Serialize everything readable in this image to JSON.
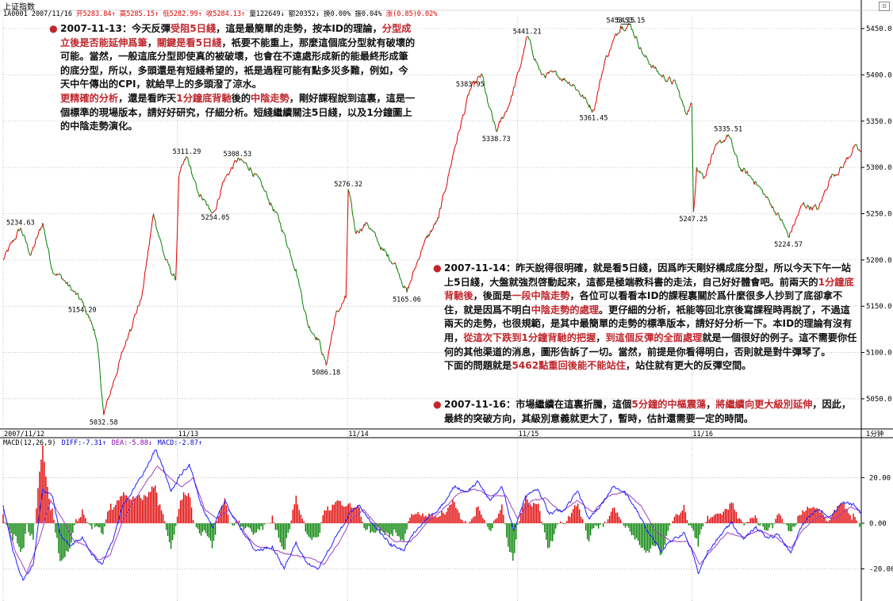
{
  "header": {
    "title": "上证指数",
    "code_date": "1A0001 2007/11/16",
    "quote": [
      {
        "label": "开",
        "value": "5283.84",
        "arrow": "↑",
        "color": "#e00000"
      },
      {
        "label": "高",
        "value": "5285.15",
        "arrow": "↑",
        "color": "#e00000"
      },
      {
        "label": "低",
        "value": "5282.99",
        "arrow": "↑",
        "color": "#e00000"
      },
      {
        "label": "收",
        "value": "5284.13",
        "arrow": "↑",
        "color": "#e00000"
      },
      {
        "label": "量",
        "value": "122649",
        "arrow": "↓",
        "color": "#000000"
      },
      {
        "label": "额",
        "value": "20352",
        "arrow": "↓",
        "color": "#000000"
      },
      {
        "label": "换",
        "value": "0.00%",
        "arrow": "",
        "color": "#000000"
      },
      {
        "label": "振",
        "value": "0.04%",
        "arrow": "",
        "color": "#000000"
      },
      {
        "label": "涨",
        "value": "(0.85)0.02%",
        "arrow": "",
        "color": "#e00000"
      }
    ]
  },
  "chart_data": [
    {
      "type": "line",
      "title": "上证指数 1分钟",
      "period_label": "1分钟",
      "y_ticks": [
        "5050.0",
        "5100.0",
        "5150.0",
        "5200.0",
        "5250.0",
        "5300.0",
        "5350.0",
        "5400.0",
        "5450.0"
      ],
      "ylim": [
        5020,
        5462
      ],
      "x_ticks": [
        "2007/11/12",
        "11/13",
        "11/14",
        "11/15",
        "11/16"
      ],
      "x_tick_index": [
        0,
        220,
        435,
        650,
        870
      ],
      "n_points": 1085,
      "up_color": "#e00000",
      "down_color": "#008000",
      "price_anchors": [
        [
          0,
          5200
        ],
        [
          22,
          5234.63
        ],
        [
          35,
          5205
        ],
        [
          50,
          5240
        ],
        [
          62,
          5190
        ],
        [
          75,
          5180
        ],
        [
          100,
          5154.2
        ],
        [
          115,
          5125
        ],
        [
          120,
          5100
        ],
        [
          127,
          5032.58
        ],
        [
          140,
          5070
        ],
        [
          160,
          5125
        ],
        [
          175,
          5160
        ],
        [
          190,
          5250
        ],
        [
          205,
          5200
        ],
        [
          218,
          5178
        ],
        [
          222,
          5290
        ],
        [
          232,
          5311.29
        ],
        [
          245,
          5275
        ],
        [
          260,
          5255
        ],
        [
          268,
          5254.05
        ],
        [
          278,
          5285
        ],
        [
          296,
          5308.53
        ],
        [
          312,
          5300
        ],
        [
          330,
          5275
        ],
        [
          350,
          5240
        ],
        [
          370,
          5190
        ],
        [
          385,
          5130
        ],
        [
          398,
          5115
        ],
        [
          408,
          5086.18
        ],
        [
          420,
          5140
        ],
        [
          433,
          5159
        ],
        [
          436,
          5276.32
        ],
        [
          445,
          5230
        ],
        [
          460,
          5240
        ],
        [
          480,
          5210
        ],
        [
          496,
          5195
        ],
        [
          510,
          5165.06
        ],
        [
          530,
          5215
        ],
        [
          550,
          5245
        ],
        [
          570,
          5320
        ],
        [
          590,
          5383.95
        ],
        [
          605,
          5400
        ],
        [
          612,
          5370
        ],
        [
          623,
          5338.73
        ],
        [
          640,
          5370
        ],
        [
          652,
          5405
        ],
        [
          662,
          5441.21
        ],
        [
          680,
          5400
        ],
        [
          700,
          5400
        ],
        [
          720,
          5390
        ],
        [
          746,
          5361.45
        ],
        [
          760,
          5415
        ],
        [
          780,
          5453.15
        ],
        [
          793,
          5453.15
        ],
        [
          810,
          5420
        ],
        [
          830,
          5400
        ],
        [
          850,
          5390
        ],
        [
          862,
          5359
        ],
        [
          870,
          5368
        ],
        [
          872,
          5252
        ],
        [
          876,
          5300
        ],
        [
          886,
          5290
        ],
        [
          896,
          5315
        ],
        [
          916,
          5335.51
        ],
        [
          930,
          5300
        ],
        [
          950,
          5285
        ],
        [
          970,
          5260
        ],
        [
          985,
          5240
        ],
        [
          992,
          5224.57
        ],
        [
          1010,
          5260
        ],
        [
          1030,
          5255
        ],
        [
          1045,
          5290
        ],
        [
          1060,
          5300
        ],
        [
          1075,
          5322
        ],
        [
          1085,
          5315
        ]
      ],
      "labels": [
        {
          "text": "5234.63",
          "x": 22,
          "y": 5234.63,
          "pos": "above"
        },
        {
          "text": "5154.20",
          "x": 100,
          "y": 5154.2,
          "pos": "below"
        },
        {
          "text": "5032.58",
          "x": 127,
          "y": 5032.58,
          "pos": "below"
        },
        {
          "text": "5311.29",
          "x": 232,
          "y": 5311.29,
          "pos": "above"
        },
        {
          "text": "5254.05",
          "x": 268,
          "y": 5254.05,
          "pos": "below"
        },
        {
          "text": "5308.53",
          "x": 296,
          "y": 5308.53,
          "pos": "above"
        },
        {
          "text": "5086.18",
          "x": 408,
          "y": 5086.18,
          "pos": "below"
        },
        {
          "text": "5276.32",
          "x": 436,
          "y": 5276.32,
          "pos": "above"
        },
        {
          "text": "5165.06",
          "x": 510,
          "y": 5165.06,
          "pos": "below"
        },
        {
          "text": "5383.95",
          "x": 590,
          "y": 5383.95,
          "pos": "above"
        },
        {
          "text": "5338.73",
          "x": 623,
          "y": 5338.73,
          "pos": "below"
        },
        {
          "text": "5441.21",
          "x": 662,
          "y": 5441.21,
          "pos": "above"
        },
        {
          "text": "5361.45",
          "x": 746,
          "y": 5361.45,
          "pos": "below"
        },
        {
          "text": "5453.15",
          "x": 780,
          "y": 5453.15,
          "pos": "above"
        },
        {
          "text": "5453.15",
          "x": 793,
          "y": 5453.15,
          "pos": "above"
        },
        {
          "text": "5335.51",
          "x": 916,
          "y": 5335.51,
          "pos": "above"
        },
        {
          "text": "5247.25",
          "x": 872,
          "y": 5252,
          "pos": "below"
        },
        {
          "text": "5224.57",
          "x": 992,
          "y": 5224.57,
          "pos": "below"
        }
      ]
    },
    {
      "type": "bar",
      "title": "MACD(12,26,9)",
      "legend": [
        {
          "text": "MACD(12,26,9)",
          "color": "#000000"
        },
        {
          "text": "DIFF:-7.31↑",
          "color": "#0000cc"
        },
        {
          "text": "DEA:-5.88↓",
          "color": "#9000b0"
        },
        {
          "text": "MACD:-2.87↑",
          "color": "#0000cc"
        }
      ],
      "y_ticks": [
        "20.00",
        "0.00",
        "-20.00"
      ],
      "ylim": [
        -32,
        33
      ],
      "pos_color": "#e00000",
      "neg_color": "#008000",
      "diff_color": "#2020ff",
      "dea_color": "#a040c0",
      "diff_anchors": [
        [
          0,
          8
        ],
        [
          12,
          -12
        ],
        [
          25,
          -25
        ],
        [
          38,
          -18
        ],
        [
          50,
          15
        ],
        [
          62,
          12
        ],
        [
          72,
          -5
        ],
        [
          85,
          -10
        ],
        [
          100,
          -6
        ],
        [
          112,
          -14
        ],
        [
          125,
          -18
        ],
        [
          138,
          -8
        ],
        [
          150,
          6
        ],
        [
          165,
          15
        ],
        [
          180,
          24
        ],
        [
          192,
          32
        ],
        [
          202,
          25
        ],
        [
          212,
          14
        ],
        [
          222,
          20
        ],
        [
          235,
          26
        ],
        [
          250,
          8
        ],
        [
          265,
          -2
        ],
        [
          280,
          10
        ],
        [
          292,
          2
        ],
        [
          305,
          -5
        ],
        [
          320,
          -12
        ],
        [
          340,
          -10
        ],
        [
          355,
          -20
        ],
        [
          370,
          -8
        ],
        [
          385,
          -18
        ],
        [
          398,
          -20
        ],
        [
          410,
          -12
        ],
        [
          428,
          -2
        ],
        [
          438,
          5
        ],
        [
          450,
          8
        ],
        [
          470,
          -2
        ],
        [
          490,
          -9
        ],
        [
          505,
          -12
        ],
        [
          520,
          -4
        ],
        [
          535,
          2
        ],
        [
          550,
          6
        ],
        [
          570,
          16
        ],
        [
          585,
          14
        ],
        [
          600,
          18
        ],
        [
          615,
          10
        ],
        [
          630,
          16
        ],
        [
          645,
          -3
        ],
        [
          660,
          12
        ],
        [
          675,
          15
        ],
        [
          690,
          4
        ],
        [
          710,
          6
        ],
        [
          725,
          14
        ],
        [
          740,
          2
        ],
        [
          755,
          8
        ],
        [
          770,
          16
        ],
        [
          785,
          14
        ],
        [
          800,
          6
        ],
        [
          815,
          -4
        ],
        [
          830,
          -12
        ],
        [
          845,
          -8
        ],
        [
          860,
          -4
        ],
        [
          870,
          -12
        ],
        [
          878,
          -22
        ],
        [
          890,
          -12
        ],
        [
          905,
          -6
        ],
        [
          920,
          0
        ],
        [
          935,
          -7
        ],
        [
          950,
          -2
        ],
        [
          965,
          -6
        ],
        [
          980,
          -5
        ],
        [
          995,
          -13
        ],
        [
          1005,
          -4
        ],
        [
          1015,
          2
        ],
        [
          1030,
          6
        ],
        [
          1045,
          3
        ],
        [
          1060,
          9
        ],
        [
          1075,
          8
        ],
        [
          1085,
          4
        ]
      ],
      "dea_anchors": [
        [
          0,
          6
        ],
        [
          15,
          -12
        ],
        [
          30,
          -22
        ],
        [
          45,
          -8
        ],
        [
          60,
          10
        ],
        [
          75,
          2
        ],
        [
          90,
          -8
        ],
        [
          105,
          -10
        ],
        [
          120,
          -16
        ],
        [
          135,
          -14
        ],
        [
          150,
          0
        ],
        [
          165,
          10
        ],
        [
          180,
          18
        ],
        [
          195,
          25
        ],
        [
          210,
          20
        ],
        [
          225,
          16
        ],
        [
          240,
          20
        ],
        [
          255,
          6
        ],
        [
          270,
          2
        ],
        [
          285,
          6
        ],
        [
          300,
          -2
        ],
        [
          320,
          -10
        ],
        [
          345,
          -12
        ],
        [
          365,
          -14
        ],
        [
          385,
          -15
        ],
        [
          405,
          -18
        ],
        [
          425,
          -8
        ],
        [
          440,
          2
        ],
        [
          455,
          6
        ],
        [
          475,
          -2
        ],
        [
          495,
          -8
        ],
        [
          515,
          -8
        ],
        [
          535,
          0
        ],
        [
          555,
          6
        ],
        [
          575,
          13
        ],
        [
          595,
          15
        ],
        [
          615,
          12
        ],
        [
          635,
          12
        ],
        [
          650,
          2
        ],
        [
          668,
          10
        ],
        [
          685,
          11
        ],
        [
          705,
          5
        ],
        [
          725,
          10
        ],
        [
          745,
          5
        ],
        [
          765,
          12
        ],
        [
          785,
          14
        ],
        [
          805,
          8
        ],
        [
          825,
          -4
        ],
        [
          845,
          -8
        ],
        [
          865,
          -8
        ],
        [
          880,
          -18
        ],
        [
          895,
          -12
        ],
        [
          915,
          -4
        ],
        [
          935,
          -6
        ],
        [
          955,
          -3
        ],
        [
          975,
          -6
        ],
        [
          995,
          -11
        ],
        [
          1010,
          -3
        ],
        [
          1030,
          3
        ],
        [
          1050,
          2
        ],
        [
          1070,
          7
        ],
        [
          1085,
          5
        ]
      ]
    }
  ],
  "annotations": {
    "a1": [
      {
        "t": "2007-11-13：今天反彈",
        "c": 0
      },
      {
        "t": "受阻5日綫",
        "c": 1
      },
      {
        "t": "，這是最簡單的走勢，按本ID的理論，",
        "c": 0
      },
      {
        "t": "分型成立後是否能延伸爲筆",
        "c": 1
      },
      {
        "t": "，",
        "c": 0
      },
      {
        "t": "關鍵是看5日綫",
        "c": 1
      },
      {
        "t": "，衹要不能重上，那麼這個底分型就有破壞的可能。當然，一般這底分型即使真的被破壞，也會在不遠處形成新的能最終形成筆的底分型，所以，多頭還是有短綫希望的，衹是過程可能有點多災多難，例如，今天中午傳出的CPI，就給早上的多頭潑了涼水。",
        "c": 0
      },
      {
        "br": 1
      },
      {
        "t": "更精確的分析",
        "c": 1
      },
      {
        "t": "，還是看昨天",
        "c": 0
      },
      {
        "t": "1分鐘底背馳",
        "c": 1
      },
      {
        "t": "後的",
        "c": 0
      },
      {
        "t": "中陰走勢",
        "c": 1
      },
      {
        "t": "，剛好課程說到這裏，這是一個標準的現場版本，請好好研究，仔細分析。短綫繼續關注5日綫，以及1分鐘圖上的中陰走勢演化。",
        "c": 0
      }
    ],
    "a2": [
      {
        "t": "2007-11-14：昨天說得很明確，就是看5日綫，因爲昨天剛好構成底分型，所以今天下午一站上5日綫，大盤就強烈啓動起來，這都是極端教科書的走法，自己好好體會吧。前兩天的",
        "c": 0
      },
      {
        "t": "1分鐘底背馳後",
        "c": 1
      },
      {
        "t": "，後面是",
        "c": 0
      },
      {
        "t": "一段中陰走勢",
        "c": 1
      },
      {
        "t": "，各位可以看看本ID的課程裏關於爲什麼很多人抄到了底卻拿不住，就是因爲不明白",
        "c": 0
      },
      {
        "t": "中陰走勢的處理",
        "c": 1
      },
      {
        "t": "。更仔細的分析，衹能等回北京後寫課程時再說了，不過這兩天的走勢，也很規範，是其中最簡單的走勢的標準版本，請好好分析一下。本ID的理論有沒有用，",
        "c": 0
      },
      {
        "t": "從這次下跌到1分鐘背馳的把握",
        "c": 1
      },
      {
        "t": "，",
        "c": 0
      },
      {
        "t": "到這個反彈的全面處理",
        "c": 1
      },
      {
        "t": "就是一個很好的例子。這不需要你任何的其他渠道的消息，圖形告訴了一切。當然，前提是你看得明白，否則就是對牛彈琴了。",
        "c": 0
      },
      {
        "br": 1
      },
      {
        "t": "下面的問題就是",
        "c": 0
      },
      {
        "t": "5462點重回後能不能站住",
        "c": 1
      },
      {
        "t": "，站住就有更大的反彈空間。",
        "c": 0
      }
    ],
    "a3": [
      {
        "t": "2007-11-16：市場繼續在這裏折騰，這個",
        "c": 0
      },
      {
        "t": "5分鐘的中樞震蕩",
        "c": 1
      },
      {
        "t": "，",
        "c": 0
      },
      {
        "t": "將繼續向更大級別延伸",
        "c": 1
      },
      {
        "t": "，因此，最終的突破方向，其級別意義就更大了，暫時，估計還需要一定的時間。",
        "c": 0
      }
    ]
  }
}
